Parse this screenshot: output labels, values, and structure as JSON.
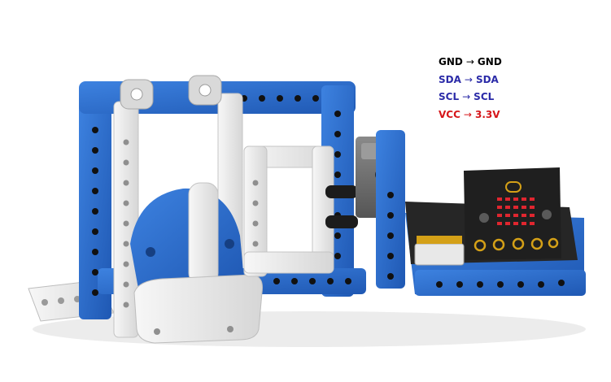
{
  "colors": {
    "background": "#ffffff",
    "frame_blue": "#2f6fd0",
    "frame_blue_dark": "#1f55a8",
    "beam_white": "#eeeeee",
    "beam_gray": "#cfcfcf",
    "servo_gray": "#6b6b6b",
    "board_black": "#222222",
    "led_red": "#e0262f",
    "text_black": "#000000",
    "text_blue": "#2b2ba8",
    "text_red": "#d6161a"
  },
  "wiring": [
    {
      "left": "GND",
      "arrow": "→",
      "right": "GND",
      "color": "#000000"
    },
    {
      "left": "SDA",
      "arrow": "→",
      "right": "SDA",
      "color": "#2b2ba8"
    },
    {
      "left": "SCL",
      "arrow": "→",
      "right": "SCL",
      "color": "#2b2ba8"
    },
    {
      "left": "VCC",
      "arrow": "→",
      "right": "3.3V",
      "color": "#d6161a"
    }
  ],
  "picture": {
    "name": "lego-microbit-robot-assembly"
  }
}
